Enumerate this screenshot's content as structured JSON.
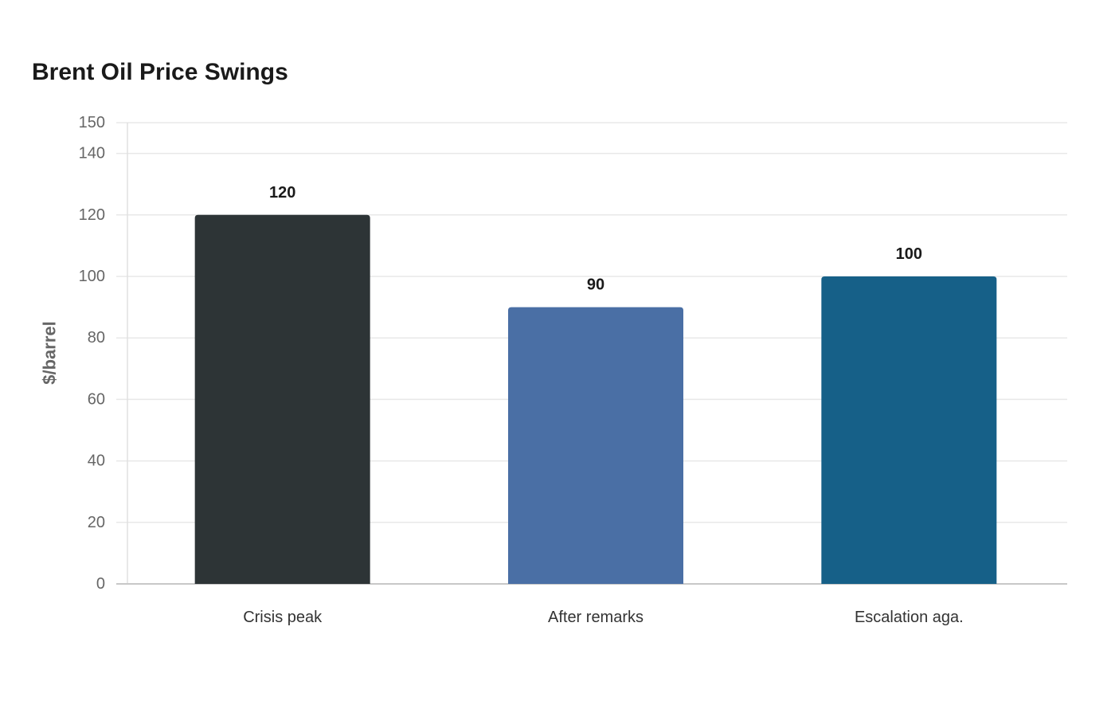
{
  "chart_data": {
    "type": "bar",
    "title": "Brent Oil Price Swings",
    "xlabel": "",
    "ylabel": "$/barrel",
    "categories": [
      "Crisis peak",
      "After remarks",
      "Escalation aga."
    ],
    "values": [
      120,
      90,
      100
    ],
    "colors": [
      "#2d3436",
      "#4a6fa5",
      "#166088"
    ],
    "ylim": [
      0,
      150
    ],
    "yticks": [
      0,
      20,
      40,
      60,
      80,
      100,
      120,
      140,
      150
    ],
    "grid": true,
    "legend": "none"
  }
}
